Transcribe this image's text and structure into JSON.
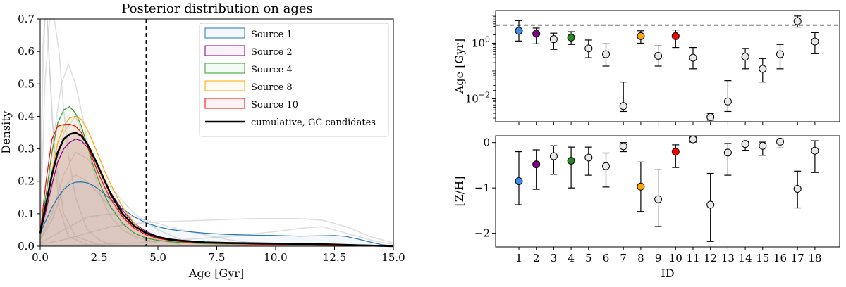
{
  "chart_data": [
    {
      "type": "line",
      "title": "Posterior distribution on ages",
      "xlabel": "Age [Gyr]",
      "ylabel": "Density",
      "xlim": [
        0,
        15
      ],
      "ylim": [
        0,
        0.7
      ],
      "xticks": [
        "0.0",
        "2.5",
        "5.0",
        "7.5",
        "10.0",
        "12.5",
        "15.0"
      ],
      "yticks": [
        "0.0",
        "0.1",
        "0.2",
        "0.3",
        "0.4",
        "0.5",
        "0.6",
        "0.7"
      ],
      "reference_line_x": 4.5,
      "legend_position": "top-right",
      "series": [
        {
          "name": "Source 1",
          "color": "#1f77b4",
          "x": [
            0,
            0.25,
            0.5,
            0.75,
            1.0,
            1.25,
            1.5,
            1.75,
            2.0,
            2.25,
            2.5,
            3.0,
            3.5,
            4.0,
            4.5,
            5.0,
            5.5,
            6.0,
            7.0,
            8.0,
            9.0,
            10.0,
            11.0,
            12.0,
            12.5,
            13.0,
            13.5,
            14.0,
            14.5,
            15.0
          ],
          "y": [
            0.04,
            0.08,
            0.12,
            0.15,
            0.175,
            0.19,
            0.197,
            0.198,
            0.195,
            0.187,
            0.175,
            0.145,
            0.115,
            0.09,
            0.072,
            0.06,
            0.052,
            0.047,
            0.04,
            0.036,
            0.034,
            0.033,
            0.031,
            0.032,
            0.033,
            0.03,
            0.022,
            0.013,
            0.005,
            0.001
          ]
        },
        {
          "name": "Source 2",
          "color": "#800080",
          "x": [
            0,
            0.25,
            0.5,
            0.75,
            1.0,
            1.25,
            1.5,
            1.75,
            2.0,
            2.25,
            2.5,
            2.75,
            3.0,
            3.5,
            4.0,
            4.5,
            5.0,
            5.5,
            6.0,
            7.0,
            8.0,
            9.0,
            10.0,
            11.0,
            12.0,
            13.0,
            14.0,
            15.0
          ],
          "y": [
            0.04,
            0.11,
            0.19,
            0.26,
            0.3,
            0.32,
            0.33,
            0.325,
            0.305,
            0.275,
            0.24,
            0.2,
            0.165,
            0.11,
            0.07,
            0.045,
            0.03,
            0.022,
            0.018,
            0.013,
            0.01,
            0.008,
            0.007,
            0.006,
            0.005,
            0.003,
            0.001,
            0.0
          ]
        },
        {
          "name": "Source 4",
          "color": "#2ca02c",
          "x": [
            0,
            0.25,
            0.5,
            0.75,
            1.0,
            1.25,
            1.5,
            1.75,
            2.0,
            2.25,
            2.5,
            2.75,
            3.0,
            3.5,
            4.0,
            4.5,
            5.0,
            5.5,
            6.0,
            7.0,
            8.0,
            9.0,
            10.0,
            11.0,
            12.0,
            13.0,
            14.0,
            15.0
          ],
          "y": [
            0.04,
            0.16,
            0.29,
            0.38,
            0.42,
            0.43,
            0.41,
            0.37,
            0.31,
            0.25,
            0.2,
            0.155,
            0.12,
            0.07,
            0.04,
            0.025,
            0.018,
            0.014,
            0.011,
            0.008,
            0.007,
            0.006,
            0.005,
            0.004,
            0.003,
            0.002,
            0.001,
            0.0
          ]
        },
        {
          "name": "Source 8",
          "color": "#ffa500",
          "x": [
            0,
            0.25,
            0.5,
            0.75,
            1.0,
            1.25,
            1.5,
            1.75,
            2.0,
            2.25,
            2.5,
            2.75,
            3.0,
            3.5,
            4.0,
            4.5,
            5.0,
            5.5,
            6.0,
            7.0,
            8.0,
            9.0,
            10.0,
            11.0,
            12.0,
            13.0,
            14.0,
            15.0
          ],
          "y": [
            0.04,
            0.13,
            0.23,
            0.32,
            0.37,
            0.395,
            0.4,
            0.39,
            0.36,
            0.32,
            0.275,
            0.23,
            0.19,
            0.12,
            0.07,
            0.04,
            0.025,
            0.018,
            0.014,
            0.01,
            0.008,
            0.007,
            0.006,
            0.005,
            0.004,
            0.002,
            0.001,
            0.0
          ]
        },
        {
          "name": "Source 10",
          "color": "#ff0000",
          "x": [
            0,
            0.25,
            0.5,
            0.75,
            1.0,
            1.25,
            1.5,
            1.75,
            2.0,
            2.25,
            2.5,
            2.75,
            3.0,
            3.5,
            4.0,
            4.5,
            5.0,
            5.5,
            6.0,
            7.0,
            8.0,
            9.0,
            10.0,
            11.0,
            12.0,
            13.0,
            14.0,
            15.0
          ],
          "y": [
            0.04,
            0.2,
            0.33,
            0.37,
            0.375,
            0.376,
            0.37,
            0.35,
            0.31,
            0.265,
            0.22,
            0.18,
            0.145,
            0.09,
            0.055,
            0.035,
            0.024,
            0.018,
            0.014,
            0.01,
            0.008,
            0.006,
            0.005,
            0.004,
            0.003,
            0.002,
            0.001,
            0.0
          ]
        },
        {
          "name": "cumulative, GC candidates",
          "color": "#000000",
          "highlight": true,
          "x": [
            0,
            0.25,
            0.5,
            0.75,
            1.0,
            1.25,
            1.5,
            1.75,
            2.0,
            2.25,
            2.5,
            2.75,
            3.0,
            3.5,
            4.0,
            4.5,
            5.0,
            5.5,
            6.0,
            7.0,
            8.0,
            9.0,
            10.0,
            11.0,
            12.0,
            13.0,
            14.0,
            15.0
          ],
          "y": [
            0.04,
            0.13,
            0.22,
            0.29,
            0.33,
            0.345,
            0.35,
            0.34,
            0.315,
            0.28,
            0.24,
            0.2,
            0.16,
            0.1,
            0.062,
            0.04,
            0.028,
            0.021,
            0.017,
            0.012,
            0.01,
            0.009,
            0.008,
            0.007,
            0.006,
            0.004,
            0.002,
            0.0
          ]
        }
      ],
      "background_series": [
        {
          "x": [
            0,
            0.1,
            0.2,
            0.3,
            0.5,
            0.8,
            1.2,
            2.0
          ],
          "y": [
            0.0,
            0.5,
            0.72,
            0.72,
            0.4,
            0.12,
            0.03,
            0.005
          ]
        },
        {
          "x": [
            0,
            0.1,
            0.2,
            0.3,
            0.4,
            0.6,
            1.0,
            1.5,
            2.5
          ],
          "y": [
            0.0,
            0.6,
            0.72,
            0.72,
            0.55,
            0.3,
            0.1,
            0.03,
            0.005
          ]
        },
        {
          "x": [
            0,
            0.2,
            0.4,
            0.6,
            0.8,
            1.0,
            1.2,
            1.5,
            2.0,
            2.5,
            3.0
          ],
          "y": [
            0.02,
            0.5,
            0.72,
            0.72,
            0.6,
            0.42,
            0.28,
            0.15,
            0.05,
            0.02,
            0.005
          ]
        },
        {
          "x": [
            0,
            0.3,
            0.6,
            0.9,
            1.2,
            1.5,
            1.8,
            2.2,
            2.6,
            3.0,
            3.5,
            4.0,
            5.0
          ],
          "y": [
            0.02,
            0.15,
            0.35,
            0.5,
            0.56,
            0.5,
            0.4,
            0.25,
            0.15,
            0.09,
            0.05,
            0.03,
            0.01
          ]
        },
        {
          "x": [
            0,
            0.5,
            1.0,
            1.5,
            2.0,
            2.5,
            3.0,
            4.0,
            5.0,
            6.0
          ],
          "y": [
            0.02,
            0.18,
            0.35,
            0.4,
            0.32,
            0.22,
            0.14,
            0.06,
            0.02,
            0.005
          ]
        },
        {
          "x": [
            0,
            0.5,
            1.0,
            1.5,
            2.0,
            3.0,
            4.0,
            5.0,
            6.0,
            7.0,
            8.0
          ],
          "y": [
            0.02,
            0.1,
            0.22,
            0.29,
            0.27,
            0.18,
            0.1,
            0.05,
            0.02,
            0.01,
            0.003
          ]
        },
        {
          "x": [
            0,
            0.5,
            1.0,
            1.5,
            2.0,
            3.0,
            4.0,
            5.0,
            6.0,
            7.0,
            8.0,
            9.0
          ],
          "y": [
            0.02,
            0.08,
            0.18,
            0.22,
            0.2,
            0.12,
            0.06,
            0.03,
            0.015,
            0.008,
            0.004,
            0.001
          ]
        },
        {
          "x": [
            0,
            1.0,
            2.0,
            3.0,
            4.0,
            5.0,
            6.0,
            7.0,
            8.0,
            9.0,
            10.0
          ],
          "y": [
            0.01,
            0.05,
            0.09,
            0.1,
            0.09,
            0.07,
            0.05,
            0.035,
            0.02,
            0.01,
            0.004
          ]
        },
        {
          "x": [
            0,
            1.0,
            2.0,
            3.0,
            4.0,
            5.0,
            7.0,
            9.0,
            11.0,
            12.0,
            13.0,
            14.0,
            15.0
          ],
          "y": [
            0.005,
            0.02,
            0.04,
            0.06,
            0.07,
            0.075,
            0.08,
            0.085,
            0.085,
            0.08,
            0.06,
            0.03,
            0.01
          ]
        },
        {
          "x": [
            0,
            2.0,
            4.0,
            6.0,
            8.0,
            10.0,
            11.0,
            12.0,
            13.0,
            14.0,
            15.0
          ],
          "y": [
            0.001,
            0.005,
            0.01,
            0.02,
            0.03,
            0.045,
            0.055,
            0.06,
            0.04,
            0.02,
            0.005
          ]
        }
      ]
    },
    {
      "type": "scatter",
      "xlabel": "",
      "ylabel": "Age [Gyr]",
      "yscale": "log",
      "ylim": [
        0.0015,
        15
      ],
      "reference_line_y": 4.5,
      "yticks": [
        {
          "value": 1,
          "base": "10",
          "exp": "0"
        },
        {
          "value": 0.01,
          "base": "10",
          "exp": "−2"
        }
      ],
      "points": [
        {
          "id": 1,
          "value": 2.8,
          "low": 1.2,
          "high": 6.5,
          "color": "#3a8de8"
        },
        {
          "id": 2,
          "value": 2.2,
          "low": 0.95,
          "high": 3.5,
          "color": "#800080"
        },
        {
          "id": 3,
          "value": 1.4,
          "low": 0.6,
          "high": 2.3,
          "color": "#e8e8e8"
        },
        {
          "id": 4,
          "value": 1.6,
          "low": 0.9,
          "high": 2.6,
          "color": "#228b22"
        },
        {
          "id": 5,
          "value": 0.65,
          "low": 0.3,
          "high": 1.3,
          "color": "#e8e8e8"
        },
        {
          "id": 6,
          "value": 0.4,
          "low": 0.15,
          "high": 0.95,
          "color": "#e8e8e8"
        },
        {
          "id": 7,
          "value": 0.0055,
          "low": 0.0035,
          "high": 0.04,
          "color": "#e8e8e8"
        },
        {
          "id": 8,
          "value": 1.8,
          "low": 1.0,
          "high": 2.8,
          "color": "#ffa500"
        },
        {
          "id": 9,
          "value": 0.35,
          "low": 0.15,
          "high": 0.8,
          "color": "#e8e8e8"
        },
        {
          "id": 10,
          "value": 1.8,
          "low": 0.7,
          "high": 3.0,
          "color": "#ff0000"
        },
        {
          "id": 11,
          "value": 0.3,
          "low": 0.12,
          "high": 0.7,
          "color": "#e8e8e8"
        },
        {
          "id": 12,
          "value": 0.0022,
          "low": 0.0017,
          "high": 0.003,
          "color": "#e8e8e8"
        },
        {
          "id": 13,
          "value": 0.008,
          "low": 0.0035,
          "high": 0.045,
          "color": "#e8e8e8"
        },
        {
          "id": 14,
          "value": 0.33,
          "low": 0.12,
          "high": 0.65,
          "color": "#e8e8e8"
        },
        {
          "id": 15,
          "value": 0.12,
          "low": 0.04,
          "high": 0.28,
          "color": "#e8e8e8"
        },
        {
          "id": 16,
          "value": 0.4,
          "low": 0.12,
          "high": 0.9,
          "color": "#e8e8e8"
        },
        {
          "id": 17,
          "value": 6.2,
          "low": 3.8,
          "high": 9.5,
          "color": "#e8e8e8"
        },
        {
          "id": 18,
          "value": 1.15,
          "low": 0.42,
          "high": 2.4,
          "color": "#e8e8e8"
        }
      ]
    },
    {
      "type": "scatter",
      "xlabel": "ID",
      "ylabel": "[Z/H]",
      "ylim": [
        -2.3,
        0.15
      ],
      "xticks": [
        "1",
        "2",
        "3",
        "4",
        "5",
        "6",
        "7",
        "8",
        "9",
        "10",
        "11",
        "12",
        "13",
        "14",
        "15",
        "16",
        "17",
        "18"
      ],
      "yticks": [
        "0",
        "−1",
        "−2"
      ],
      "points": [
        {
          "id": 1,
          "value": -0.85,
          "low": -1.37,
          "high": -0.2,
          "color": "#3a8de8"
        },
        {
          "id": 2,
          "value": -0.48,
          "low": -1.03,
          "high": -0.16,
          "color": "#800080"
        },
        {
          "id": 3,
          "value": -0.3,
          "low": -0.7,
          "high": -0.07,
          "color": "#e8e8e8"
        },
        {
          "id": 4,
          "value": -0.4,
          "low": -1.0,
          "high": -0.1,
          "color": "#228b22"
        },
        {
          "id": 5,
          "value": -0.33,
          "low": -0.72,
          "high": -0.1,
          "color": "#e8e8e8"
        },
        {
          "id": 6,
          "value": -0.52,
          "low": -0.98,
          "high": -0.23,
          "color": "#e8e8e8"
        },
        {
          "id": 7,
          "value": -0.08,
          "low": -0.2,
          "high": 0.0,
          "color": "#e8e8e8"
        },
        {
          "id": 8,
          "value": -0.97,
          "low": -1.52,
          "high": -0.43,
          "color": "#ffa500"
        },
        {
          "id": 9,
          "value": -1.25,
          "low": -1.85,
          "high": -0.6,
          "color": "#e8e8e8"
        },
        {
          "id": 10,
          "value": -0.2,
          "low": -0.55,
          "high": -0.05,
          "color": "#ff0000"
        },
        {
          "id": 11,
          "value": 0.07,
          "low": 0.01,
          "high": 0.12,
          "color": "#e8e8e8"
        },
        {
          "id": 12,
          "value": -1.37,
          "low": -2.18,
          "high": -0.68,
          "color": "#e8e8e8"
        },
        {
          "id": 13,
          "value": -0.22,
          "low": -0.72,
          "high": -0.02,
          "color": "#e8e8e8"
        },
        {
          "id": 14,
          "value": -0.03,
          "low": -0.17,
          "high": 0.02,
          "color": "#e8e8e8"
        },
        {
          "id": 15,
          "value": -0.07,
          "low": -0.28,
          "high": 0.01,
          "color": "#e8e8e8"
        },
        {
          "id": 16,
          "value": 0.02,
          "low": -0.12,
          "high": 0.08,
          "color": "#e8e8e8"
        },
        {
          "id": 17,
          "value": -1.02,
          "low": -1.44,
          "high": -0.63,
          "color": "#e8e8e8"
        },
        {
          "id": 18,
          "value": -0.18,
          "low": -0.66,
          "high": 0.04,
          "color": "#e8e8e8"
        }
      ]
    }
  ]
}
